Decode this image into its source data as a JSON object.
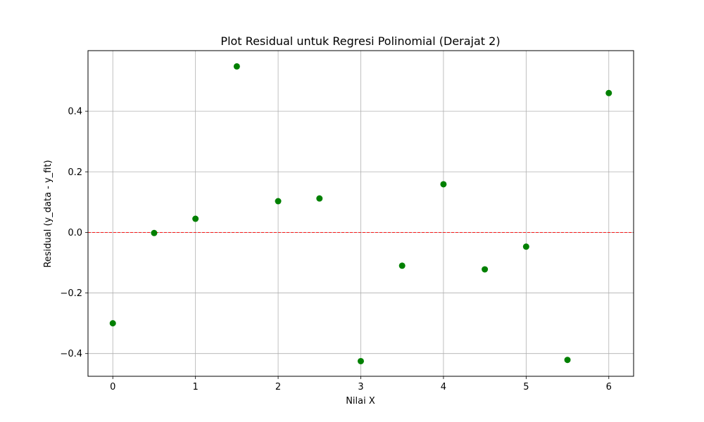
{
  "chart_data": {
    "type": "scatter",
    "title": "Plot Residual untuk Regresi Polinomial (Derajat 2)",
    "xlabel": "Nilai X",
    "ylabel": "Residual (y_data - y_fit)",
    "xlim": [
      -0.3,
      6.3
    ],
    "ylim": [
      -0.475,
      0.6
    ],
    "x_ticks": [
      0,
      1,
      2,
      3,
      4,
      5,
      6
    ],
    "x_tick_labels": [
      "0",
      "1",
      "2",
      "3",
      "4",
      "5",
      "6"
    ],
    "y_ticks": [
      -0.4,
      -0.2,
      0.0,
      0.2,
      0.4
    ],
    "y_tick_labels": [
      "−0.4",
      "−0.2",
      "0.0",
      "0.2",
      "0.4"
    ],
    "grid": true,
    "reference_line": {
      "y": 0.0,
      "style": "dashed",
      "color": "#ff0000"
    },
    "series": [
      {
        "color": "#008000",
        "x": [
          0.0,
          0.5,
          1.0,
          1.5,
          2.0,
          2.5,
          3.0,
          3.5,
          4.0,
          4.5,
          5.0,
          5.5,
          6.0
        ],
        "y": [
          -0.3,
          -0.002,
          0.045,
          0.548,
          0.103,
          0.112,
          -0.425,
          -0.11,
          0.159,
          -0.122,
          -0.047,
          -0.421,
          0.46
        ]
      }
    ]
  }
}
